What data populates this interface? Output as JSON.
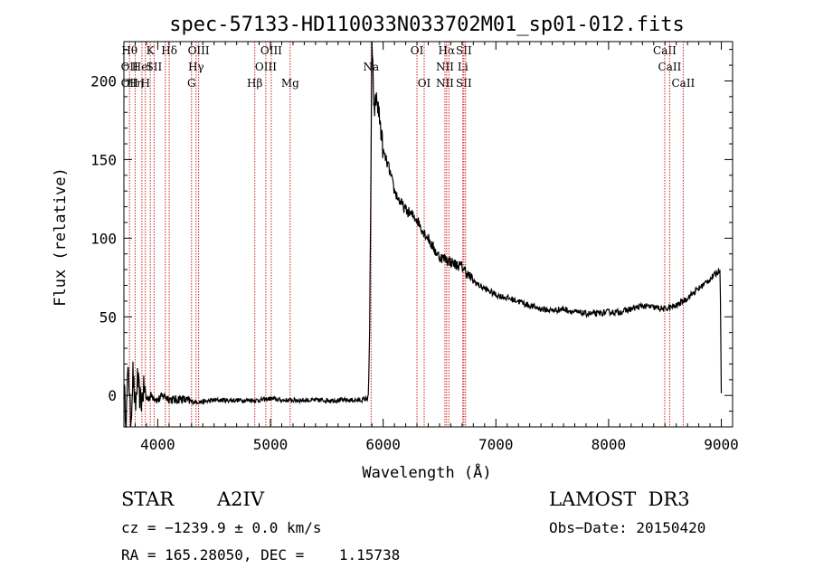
{
  "chart_data": {
    "type": "line",
    "title": "spec-57133-HD110033N033702M01_sp01-012.fits",
    "xlabel": "Wavelength (Å)",
    "ylabel": "Flux (relative)",
    "xlim": [
      3700,
      9100
    ],
    "ylim": [
      -20,
      225
    ],
    "xticks": [
      4000,
      5000,
      6000,
      7000,
      8000,
      9000
    ],
    "yticks": [
      0,
      50,
      100,
      150,
      200
    ],
    "spectrum_anchors": [
      [
        3700,
        5
      ],
      [
        3720,
        -15
      ],
      [
        3740,
        20
      ],
      [
        3760,
        -20
      ],
      [
        3780,
        15
      ],
      [
        3800,
        -10
      ],
      [
        3820,
        10
      ],
      [
        3850,
        -5
      ],
      [
        3880,
        5
      ],
      [
        3900,
        -2
      ],
      [
        3950,
        0
      ],
      [
        4000,
        -3
      ],
      [
        4050,
        0
      ],
      [
        4100,
        -2
      ],
      [
        4150,
        -3
      ],
      [
        4200,
        -2
      ],
      [
        4300,
        -4
      ],
      [
        4400,
        -4
      ],
      [
        4500,
        -3
      ],
      [
        4600,
        -3
      ],
      [
        4700,
        -3
      ],
      [
        4800,
        -3
      ],
      [
        4900,
        -3
      ],
      [
        5000,
        -2
      ],
      [
        5100,
        -3
      ],
      [
        5200,
        -3
      ],
      [
        5300,
        -3
      ],
      [
        5400,
        -3
      ],
      [
        5500,
        -3
      ],
      [
        5600,
        -3
      ],
      [
        5700,
        -3
      ],
      [
        5800,
        -3
      ],
      [
        5860,
        -2
      ],
      [
        5870,
        2
      ],
      [
        5880,
        40
      ],
      [
        5890,
        130
      ],
      [
        5900,
        225
      ],
      [
        5920,
        180
      ],
      [
        5940,
        190
      ],
      [
        5970,
        175
      ],
      [
        6000,
        155
      ],
      [
        6050,
        145
      ],
      [
        6100,
        130
      ],
      [
        6150,
        123
      ],
      [
        6200,
        118
      ],
      [
        6250,
        115
      ],
      [
        6300,
        112
      ],
      [
        6350,
        105
      ],
      [
        6400,
        100
      ],
      [
        6450,
        93
      ],
      [
        6500,
        88
      ],
      [
        6550,
        87
      ],
      [
        6600,
        85
      ],
      [
        6650,
        83
      ],
      [
        6700,
        82
      ],
      [
        6750,
        77
      ],
      [
        6800,
        73
      ],
      [
        6850,
        70
      ],
      [
        6900,
        68
      ],
      [
        6950,
        66
      ],
      [
        7000,
        64
      ],
      [
        7100,
        62
      ],
      [
        7200,
        60
      ],
      [
        7300,
        57
      ],
      [
        7400,
        55
      ],
      [
        7500,
        54
      ],
      [
        7600,
        55
      ],
      [
        7700,
        53
      ],
      [
        7800,
        52
      ],
      [
        7900,
        52
      ],
      [
        8000,
        53
      ],
      [
        8100,
        53
      ],
      [
        8200,
        55
      ],
      [
        8300,
        57
      ],
      [
        8400,
        56
      ],
      [
        8500,
        55
      ],
      [
        8600,
        57
      ],
      [
        8700,
        62
      ],
      [
        8800,
        68
      ],
      [
        8900,
        74
      ],
      [
        8960,
        78
      ],
      [
        8990,
        80
      ],
      [
        8998,
        20
      ],
      [
        9000,
        0
      ]
    ],
    "line_markers": [
      {
        "wave": 3750,
        "top": "Hθ",
        "mid": "OII",
        "low": "OII"
      },
      {
        "wave": 3800,
        "top": "",
        "mid": "",
        "low": "Hη"
      },
      {
        "wave": 3860,
        "top": "",
        "mid": "HeI",
        "low": ""
      },
      {
        "wave": 3890,
        "top": "",
        "mid": "",
        "low": "H"
      },
      {
        "wave": 3934,
        "top": "K",
        "mid": "",
        "low": ""
      },
      {
        "wave": 3968,
        "top": "",
        "mid": "SII",
        "low": ""
      },
      {
        "wave": 4068,
        "top": "",
        "mid": "",
        "low": ""
      },
      {
        "wave": 4102,
        "top": "Hδ",
        "mid": "",
        "low": ""
      },
      {
        "wave": 4300,
        "top": "",
        "mid": "",
        "low": "G"
      },
      {
        "wave": 4340,
        "top": "",
        "mid": "Hγ",
        "low": ""
      },
      {
        "wave": 4363,
        "top": "OIII",
        "mid": "",
        "low": ""
      },
      {
        "wave": 4861,
        "top": "",
        "mid": "",
        "low": "Hβ"
      },
      {
        "wave": 4959,
        "top": "",
        "mid": "OIII",
        "low": ""
      },
      {
        "wave": 5007,
        "top": "OIII",
        "mid": "",
        "low": ""
      },
      {
        "wave": 5175,
        "top": "",
        "mid": "",
        "low": "Mg"
      },
      {
        "wave": 5893,
        "top": "",
        "mid": "Na",
        "low": ""
      },
      {
        "wave": 6300,
        "top": "OI",
        "mid": "",
        "low": ""
      },
      {
        "wave": 6364,
        "top": "",
        "mid": "",
        "low": "OI"
      },
      {
        "wave": 6548,
        "top": "",
        "mid": "NII",
        "low": "NII"
      },
      {
        "wave": 6563,
        "top": "Hα",
        "mid": "",
        "low": ""
      },
      {
        "wave": 6583,
        "top": "",
        "mid": "",
        "low": ""
      },
      {
        "wave": 6707,
        "top": "",
        "mid": "Li",
        "low": ""
      },
      {
        "wave": 6716,
        "top": "SII",
        "mid": "",
        "low": "SII"
      },
      {
        "wave": 6731,
        "top": "",
        "mid": "",
        "low": ""
      },
      {
        "wave": 8498,
        "top": "CaII",
        "mid": "",
        "low": ""
      },
      {
        "wave": 8542,
        "top": "",
        "mid": "CaII",
        "low": ""
      },
      {
        "wave": 8662,
        "top": "",
        "mid": "",
        "low": "CaII"
      }
    ]
  },
  "info": {
    "object_class": "STAR",
    "subclass": "A2IV",
    "survey": "LAMOST  DR3",
    "cz": "cz = −1239.9 ± 0.0 km/s",
    "obs_date": "Obs−Date: 20150420",
    "radec": "RA = 165.28050, DEC =    1.15738"
  },
  "colors": {
    "spectrum": "#000000",
    "marker_lines": "#cc2222"
  }
}
